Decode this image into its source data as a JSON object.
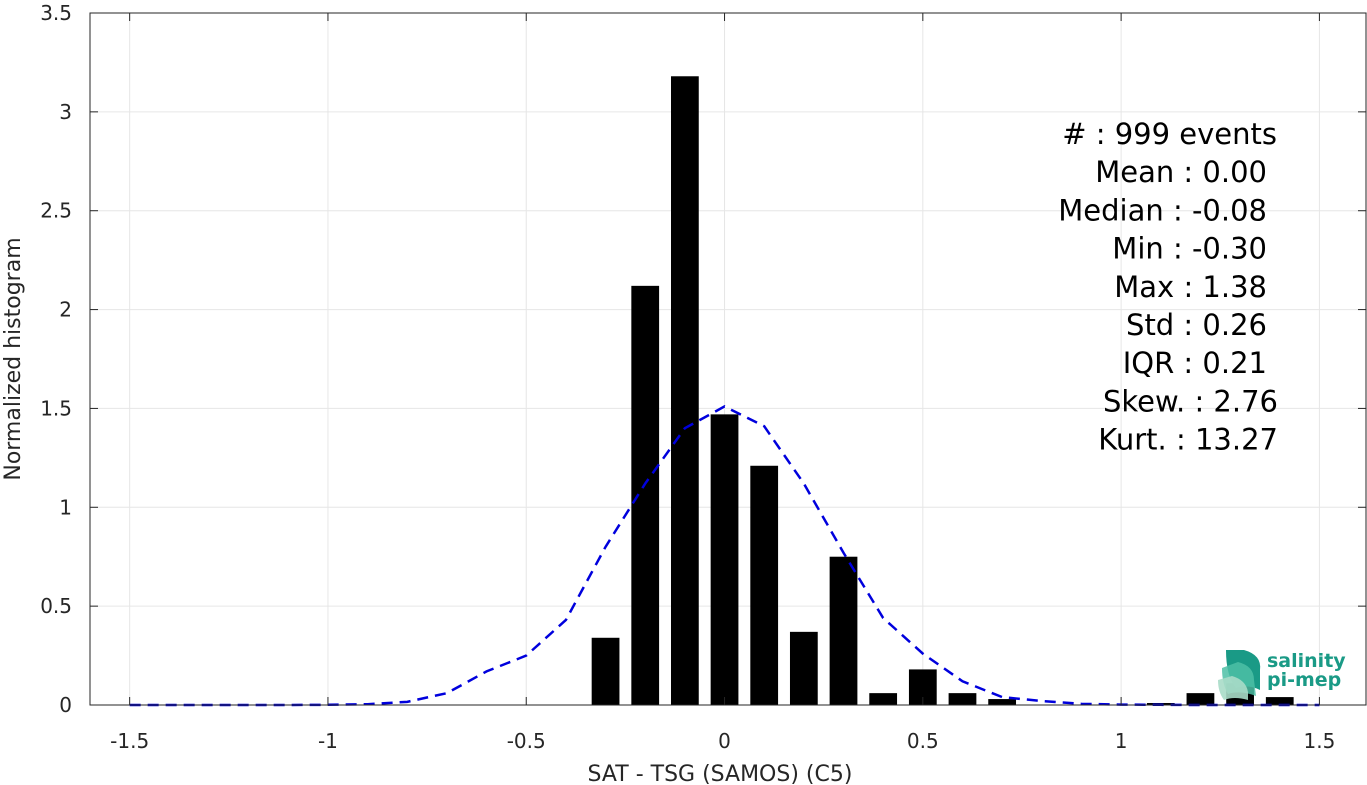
{
  "chart_data": {
    "type": "bar",
    "xlabel": "SAT - TSG (SAMOS) (C5)",
    "ylabel": "Normalized histogram",
    "xlim": [
      -1.6,
      1.62
    ],
    "ylim": [
      0,
      3.5
    ],
    "grid": true,
    "xticks": [
      -1.5,
      -1,
      -0.5,
      0,
      0.5,
      1,
      1.5
    ],
    "xtick_labels": [
      "-1.5",
      "-1",
      "-0.5",
      "0",
      "0.5",
      "1",
      "1.5"
    ],
    "yticks": [
      0,
      0.5,
      1,
      1.5,
      2,
      2.5,
      3,
      3.5
    ],
    "ytick_labels": [
      "0",
      "0.5",
      "1",
      "1.5",
      "2",
      "2.5",
      "3",
      "3.5"
    ],
    "bar_width": 0.07,
    "bars": {
      "centers": [
        -0.3,
        -0.2,
        -0.1,
        0.0,
        0.1,
        0.2,
        0.3,
        0.4,
        0.5,
        0.6,
        0.7,
        1.1,
        1.2,
        1.3,
        1.4
      ],
      "values": [
        0.34,
        2.12,
        3.18,
        1.47,
        1.21,
        0.37,
        0.75,
        0.06,
        0.18,
        0.06,
        0.03,
        0.01,
        0.06,
        0.11,
        0.04
      ],
      "color": "#000000"
    },
    "fit_curve": {
      "style": "dashed",
      "color": "#0000dd",
      "x": [
        -1.5,
        -1.4,
        -1.3,
        -1.2,
        -1.1,
        -1.0,
        -0.9,
        -0.8,
        -0.7,
        -0.6,
        -0.5,
        -0.4,
        -0.3,
        -0.2,
        -0.1,
        0.0,
        0.1,
        0.2,
        0.3,
        0.4,
        0.5,
        0.6,
        0.7,
        0.8,
        0.9,
        1.0,
        1.1,
        1.2,
        1.3,
        1.4,
        1.5
      ],
      "y": [
        0,
        0,
        0,
        0,
        0,
        0.001,
        0.004,
        0.016,
        0.06,
        0.17,
        0.25,
        0.43,
        0.8,
        1.12,
        1.4,
        1.51,
        1.41,
        1.12,
        0.77,
        0.44,
        0.26,
        0.12,
        0.04,
        0.02,
        0.006,
        0.002,
        0.001,
        0,
        0,
        0,
        0
      ]
    }
  },
  "stats": [
    {
      "label": "#  ",
      "value": ": 999 events"
    },
    {
      "label": "Mean ",
      "value": ": 0.00"
    },
    {
      "label": "Median ",
      "value": ": -0.08"
    },
    {
      "label": "Min ",
      "value": ": -0.30"
    },
    {
      "label": "Max ",
      "value": ": 1.38"
    },
    {
      "label": "Std ",
      "value": ": 0.26"
    },
    {
      "label": "IQR ",
      "value": ": 0.21"
    },
    {
      "label": "Skew. ",
      "value": ": 2.76"
    },
    {
      "label": "Kurt. ",
      "value": ": 13.27"
    }
  ],
  "logo": {
    "line1": "salinity",
    "line2": "pi-mep",
    "color": "#1a9a86"
  }
}
